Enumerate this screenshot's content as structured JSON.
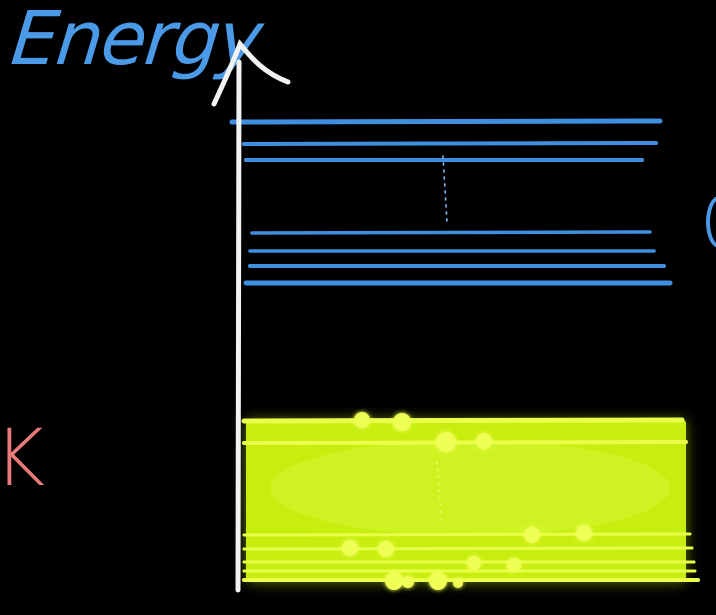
{
  "diagram": {
    "axis_label": "Energy",
    "side_label": "K",
    "colors": {
      "background": "#000000",
      "axis": "#f2f2f2",
      "upper_levels": "#3f8fe0",
      "label_energy": "#4a9ae8",
      "band": "#c8f000",
      "band_lines": "#e9ff4a",
      "electrons": "#f0ff55",
      "label_k": "#e87a7a"
    },
    "upper_level_count": 7,
    "band_level_count": 7,
    "electron_count": 14
  }
}
